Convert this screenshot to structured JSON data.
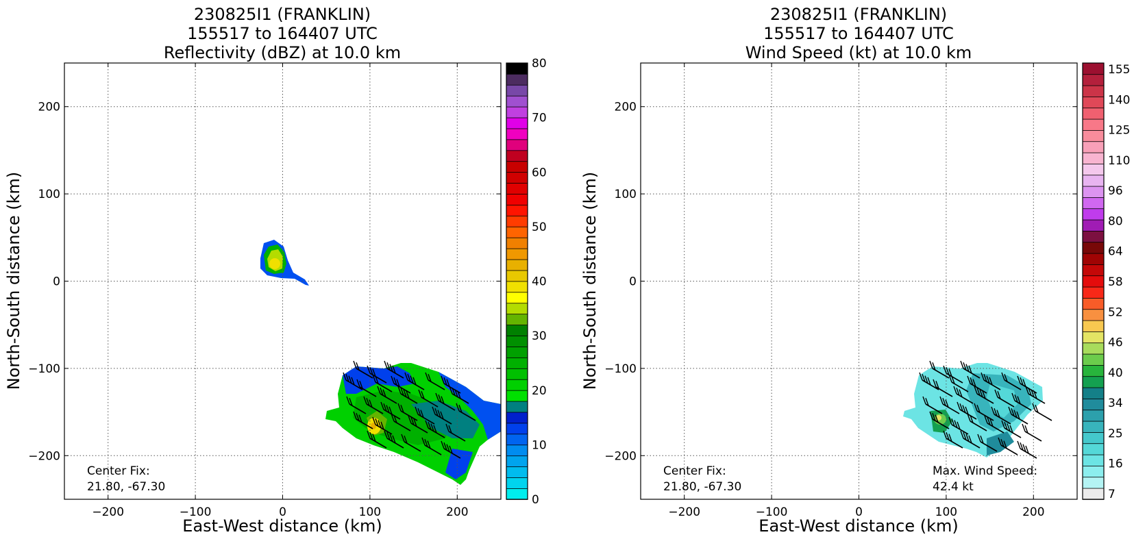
{
  "panels": [
    {
      "title": [
        "230825I1 (FRANKLIN)",
        "155517 to 164407 UTC",
        "Reflectivity (dBZ) at 10.0 km"
      ],
      "xlabel": "East-West distance (km)",
      "ylabel": "North-South distance (km)",
      "center_fix_label": "Center Fix:",
      "center_fix_value": "21.80, -67.30",
      "colorbar": {
        "labels": [
          "0",
          "10",
          "20",
          "30",
          "40",
          "50",
          "60",
          "70",
          "80"
        ],
        "colors": [
          "#00eeee",
          "#00d4ee",
          "#00bcee",
          "#00a4ee",
          "#008cf0",
          "#0064f0",
          "#0040ec",
          "#0020cc",
          "#008080",
          "#00e000",
          "#00d000",
          "#00c000",
          "#00b000",
          "#00a000",
          "#009000",
          "#008000",
          "#64b400",
          "#b4dc00",
          "#ffff00",
          "#f0e000",
          "#e8c800",
          "#e8b000",
          "#f09800",
          "#f08000",
          "#ff6400",
          "#ff3c00",
          "#ff1400",
          "#f00000",
          "#e00000",
          "#d00000",
          "#c80000",
          "#c00020",
          "#e0007c",
          "#f000c0",
          "#e000e8",
          "#c040e0",
          "#a050d0",
          "#7848a8",
          "#4c2c60",
          "#000000"
        ]
      }
    },
    {
      "title": [
        "230825I1 (FRANKLIN)",
        "155517 to 164407 UTC",
        "Wind Speed (kt) at 10.0 km"
      ],
      "xlabel": "East-West distance (km)",
      "ylabel": "North-South distance (km)",
      "center_fix_label": "Center Fix:",
      "center_fix_value": "21.80, -67.30",
      "max_wind_label": "Max. Wind Speed:",
      "max_wind_value": "42.4 kt",
      "colorbar": {
        "labels": [
          "7",
          "16",
          "25",
          "34",
          "40",
          "46",
          "52",
          "58",
          "64",
          "80",
          "96",
          "110",
          "125",
          "140",
          "155"
        ],
        "colors": [
          "#ececec",
          "#b4f4f4",
          "#8ceeee",
          "#6ce4e4",
          "#54d8d8",
          "#44c8cc",
          "#38b4bc",
          "#2ca0ac",
          "#208c9c",
          "#148088",
          "#14a050",
          "#28b43c",
          "#6ccc4c",
          "#a8dc5c",
          "#e4e464",
          "#f8c850",
          "#f89040",
          "#f85c28",
          "#f82818",
          "#e40c0c",
          "#c40808",
          "#a00404",
          "#780808",
          "#7c1040",
          "#a01cb4",
          "#c03cec",
          "#d068f0",
          "#dc94f0",
          "#e8b4f0",
          "#f4c8ec",
          "#f8b4d0",
          "#f8a0b8",
          "#f88c9c",
          "#f87888",
          "#f06070",
          "#e04858",
          "#cc3448",
          "#b4203c",
          "#9c1030"
        ]
      },
      "barbs": {
        "flag_symbol": "wind barbs"
      }
    }
  ],
  "chart_data": [
    {
      "type": "heatmap",
      "title": "230825I1 (FRANKLIN) 155517 to 164407 UTC Reflectivity (dBZ) at 10.0 km",
      "xlabel": "East-West distance (km)",
      "ylabel": "North-South distance (km)",
      "xlim": [
        -250,
        250
      ],
      "ylim": [
        -250,
        250
      ],
      "xticks": [
        -200,
        -100,
        0,
        100,
        200
      ],
      "yticks": [
        -200,
        -100,
        0,
        100,
        200
      ],
      "grid": true,
      "colorbar_range": [
        0,
        80
      ],
      "features": [
        {
          "name": "small cell",
          "x": -8,
          "y": 18,
          "peak_dbz": 38
        },
        {
          "name": "main echo",
          "x": 130,
          "y": -150,
          "peak_dbz": 36
        }
      ]
    },
    {
      "type": "heatmap",
      "title": "230825I1 (FRANKLIN) 155517 to 164407 UTC Wind Speed (kt) at 10.0 km",
      "xlabel": "East-West distance (km)",
      "ylabel": "North-South distance (km)",
      "xlim": [
        -250,
        250
      ],
      "ylim": [
        -250,
        250
      ],
      "xticks": [
        -200,
        -100,
        0,
        100,
        200
      ],
      "yticks": [
        -200,
        -100,
        0,
        100,
        200
      ],
      "grid": true,
      "colorbar_range": [
        0,
        160
      ],
      "max_wind_kt": 42.4
    }
  ]
}
